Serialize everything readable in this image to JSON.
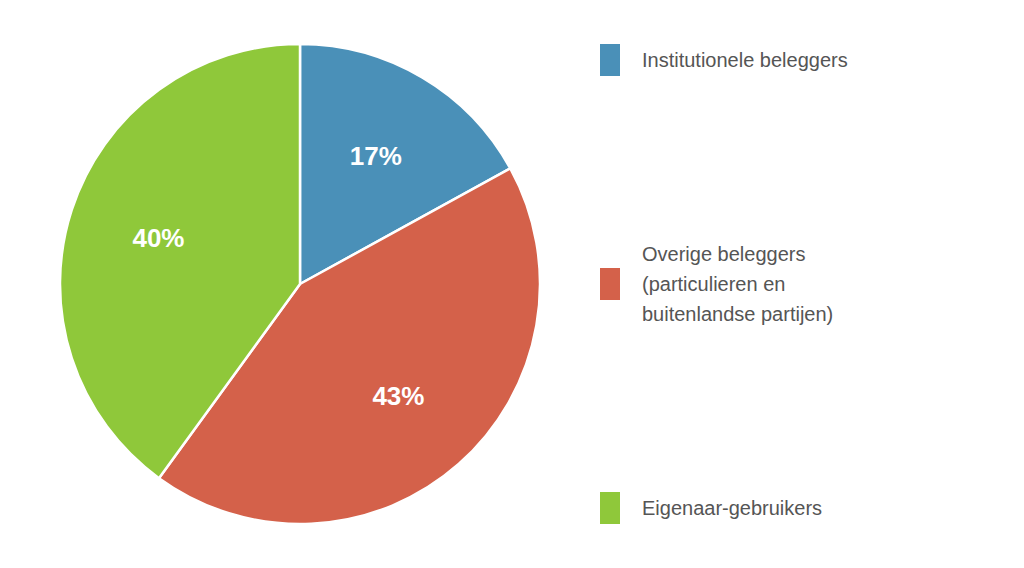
{
  "chart_data": {
    "type": "pie",
    "categories": [
      "Institutionele beleggers",
      "Overige beleggers\n(particulieren en\nbuitenlandse partijen)",
      "Eigenaar-gebruikers"
    ],
    "values": [
      17,
      43,
      40
    ],
    "value_labels": [
      "17%",
      "43%",
      "40%"
    ],
    "colors": [
      "#4a90b8",
      "#d4614a",
      "#8fc83a"
    ],
    "data_labels": true,
    "legend": "right"
  }
}
